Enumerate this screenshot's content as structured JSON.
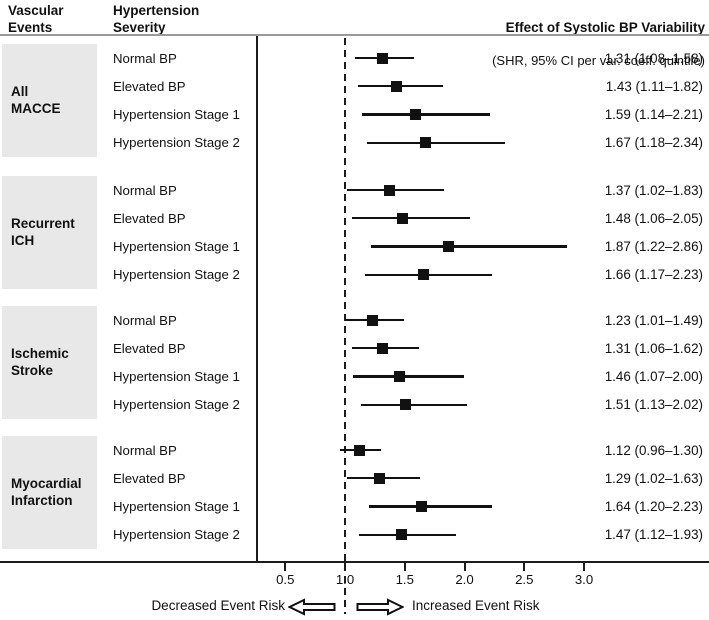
{
  "chart_data": {
    "type": "forest",
    "title": "Effect of Systolic BP Variability",
    "subtitle": "(SHR, 95% CI per var. coeff. quintile)",
    "column_headers": {
      "events": "Vascular\nEvents",
      "severity": "Hypertension\nSeverity"
    },
    "reference_value": 1.0,
    "x_ticks": [
      "0.5",
      "1.0",
      "1.5",
      "2.0",
      "2.5",
      "3.0"
    ],
    "x_tick_values": [
      0.5,
      1.0,
      1.5,
      2.0,
      2.5,
      3.0
    ],
    "xlim": [
      0.26,
      4.05
    ],
    "grid": false,
    "footer": {
      "decreased": "Decreased Event Risk",
      "increased": "Increased Event Risk"
    },
    "colors": {
      "marker": "#111111",
      "group_box": "#e8e8e8",
      "axis": "#1c1c1c"
    },
    "groups": [
      {
        "name": "All\nMACCE",
        "rows": [
          {
            "label": "Normal BP",
            "shr": 1.31,
            "ci_low": 1.08,
            "ci_high": 1.58,
            "text": "1.31 (1.08–1.58)"
          },
          {
            "label": "Elevated BP",
            "shr": 1.43,
            "ci_low": 1.11,
            "ci_high": 1.82,
            "text": "1.43 (1.11–1.82)"
          },
          {
            "label": "Hypertension Stage 1",
            "shr": 1.59,
            "ci_low": 1.14,
            "ci_high": 2.21,
            "text": "1.59 (1.14–2.21)"
          },
          {
            "label": "Hypertension Stage 2",
            "shr": 1.67,
            "ci_low": 1.18,
            "ci_high": 2.34,
            "text": "1.67 (1.18–2.34)"
          }
        ]
      },
      {
        "name": "Recurrent\nICH",
        "rows": [
          {
            "label": "Normal BP",
            "shr": 1.37,
            "ci_low": 1.02,
            "ci_high": 1.83,
            "text": "1.37 (1.02–1.83)"
          },
          {
            "label": "Elevated BP",
            "shr": 1.48,
            "ci_low": 1.06,
            "ci_high": 2.05,
            "text": "1.48 (1.06–2.05)"
          },
          {
            "label": "Hypertension Stage 1",
            "shr": 1.87,
            "ci_low": 1.22,
            "ci_high": 2.86,
            "text": "1.87 (1.22–2.86)"
          },
          {
            "label": "Hypertension Stage 2",
            "shr": 1.66,
            "ci_low": 1.17,
            "ci_high": 2.23,
            "text": "1.66 (1.17–2.23)"
          }
        ]
      },
      {
        "name": "Ischemic\nStroke",
        "rows": [
          {
            "label": "Normal BP",
            "shr": 1.23,
            "ci_low": 1.01,
            "ci_high": 1.49,
            "text": "1.23 (1.01–1.49)"
          },
          {
            "label": "Elevated BP",
            "shr": 1.31,
            "ci_low": 1.06,
            "ci_high": 1.62,
            "text": "1.31 (1.06–1.62)"
          },
          {
            "label": "Hypertension Stage 1",
            "shr": 1.46,
            "ci_low": 1.07,
            "ci_high": 2.0,
            "text": "1.46 (1.07–2.00)"
          },
          {
            "label": "Hypertension Stage 2",
            "shr": 1.51,
            "ci_low": 1.13,
            "ci_high": 2.02,
            "text": "1.51 (1.13–2.02)"
          }
        ]
      },
      {
        "name": "Myocardial\nInfarction",
        "rows": [
          {
            "label": "Normal BP",
            "shr": 1.12,
            "ci_low": 0.96,
            "ci_high": 1.3,
            "text": "1.12 (0.96–1.30)"
          },
          {
            "label": "Elevated BP",
            "shr": 1.29,
            "ci_low": 1.02,
            "ci_high": 1.63,
            "text": "1.29 (1.02–1.63)"
          },
          {
            "label": "Hypertension Stage 1",
            "shr": 1.64,
            "ci_low": 1.2,
            "ci_high": 2.23,
            "text": "1.64 (1.20–2.23)"
          },
          {
            "label": "Hypertension Stage 2",
            "shr": 1.47,
            "ci_low": 1.12,
            "ci_high": 1.93,
            "text": "1.47 (1.12–1.93)"
          }
        ]
      }
    ]
  }
}
